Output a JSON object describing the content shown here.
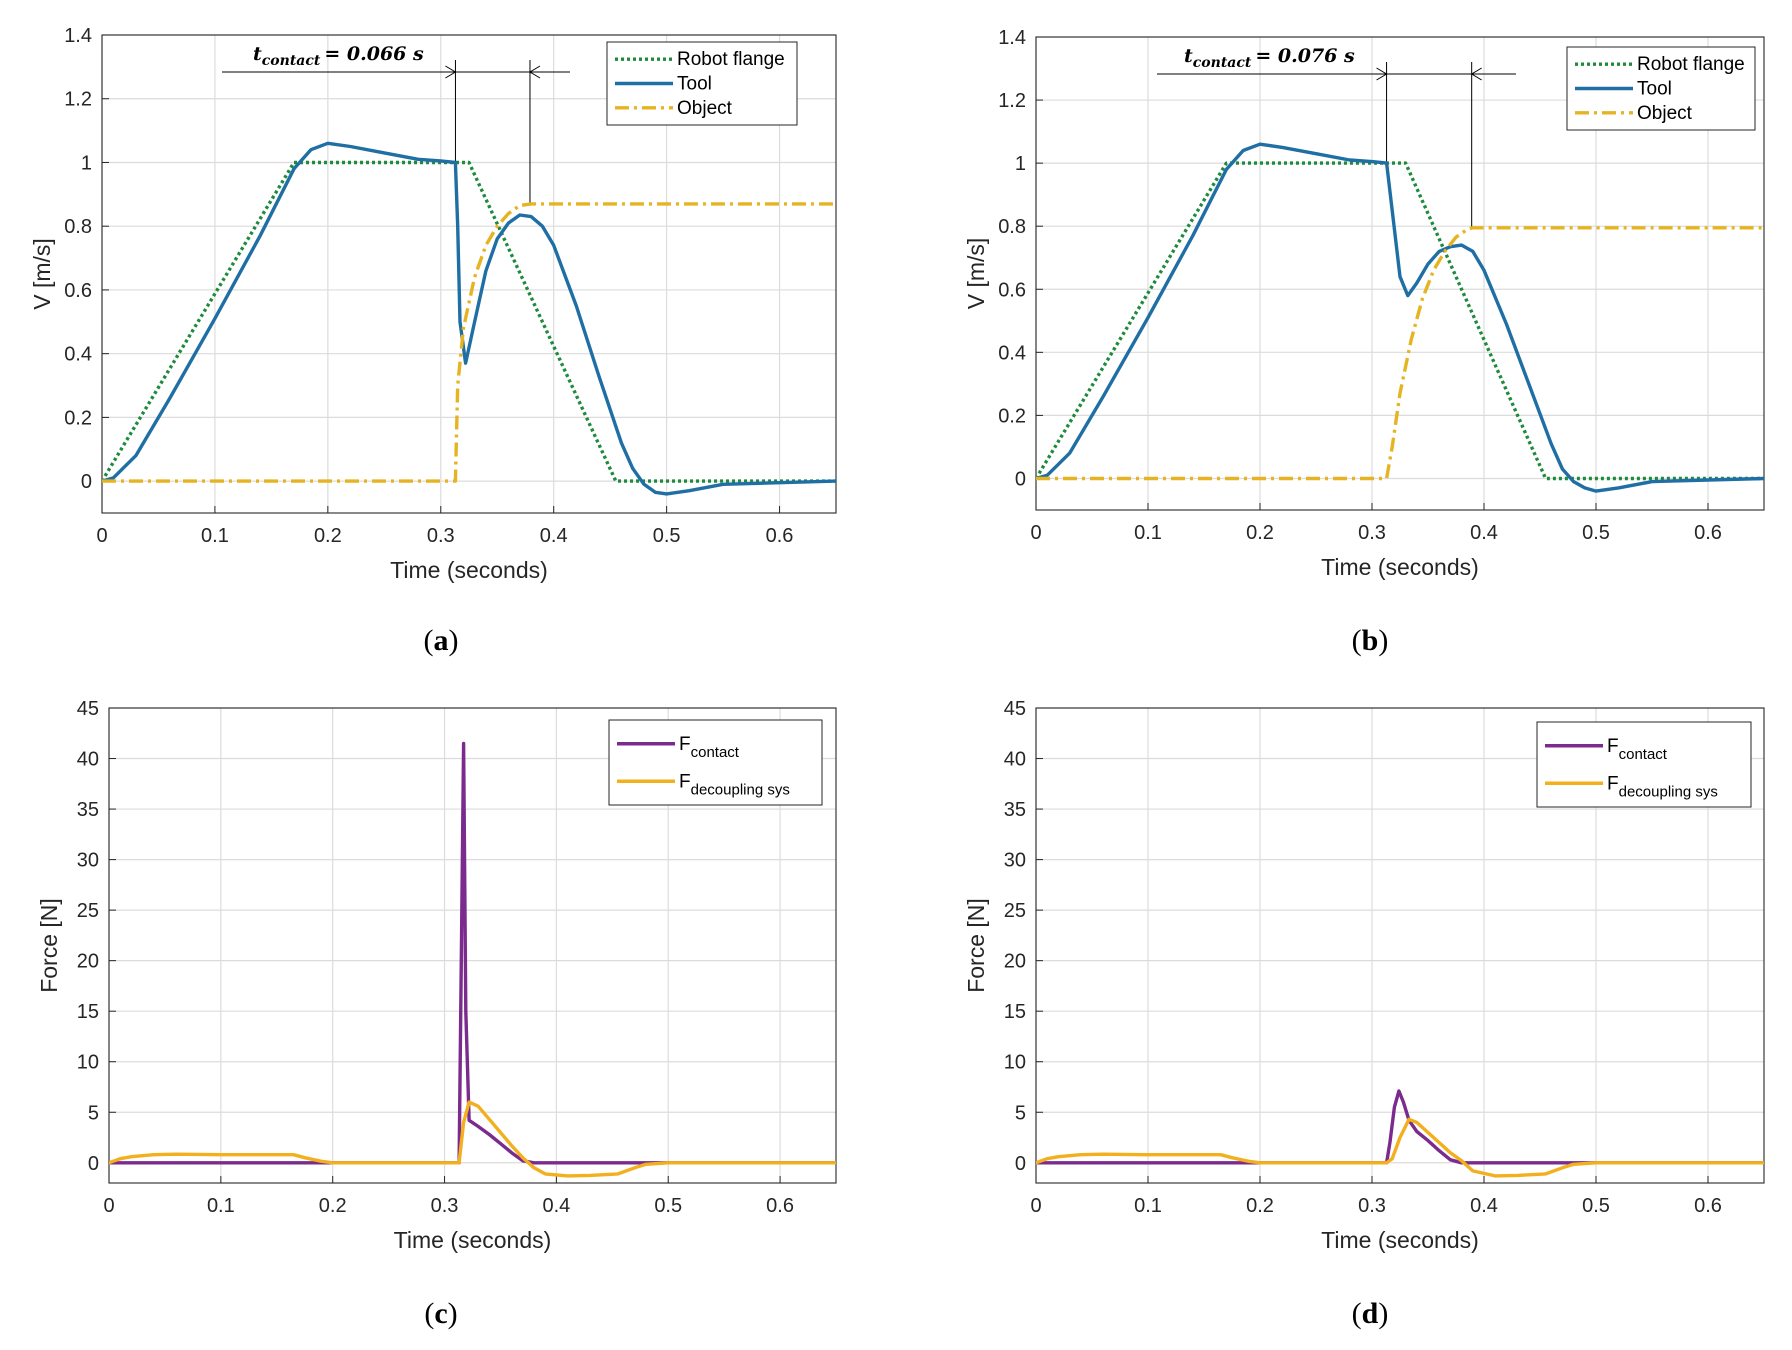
{
  "chart_data": [
    {
      "id": "a",
      "type": "line",
      "caption": "a",
      "xlabel": "Time (seconds)",
      "ylabel": "V [m/s]",
      "xlim": [
        0,
        0.65
      ],
      "ylim": [
        -0.1,
        1.4
      ],
      "xticks": [
        0,
        0.1,
        0.2,
        0.3,
        0.4,
        0.5,
        0.6
      ],
      "xtick_labels": [
        "0",
        "0.1",
        "0.2",
        "0.3",
        "0.4",
        "0.5",
        "0.6"
      ],
      "yticks": [
        0,
        0.2,
        0.4,
        0.6,
        0.8,
        1,
        1.2,
        1.4
      ],
      "ytick_labels": [
        "0",
        "0.2",
        "0.4",
        "0.6",
        "0.8",
        "1",
        "1.2",
        "1.4"
      ],
      "grid": true,
      "legend_position": "top-right",
      "annotation": {
        "symbol": "t",
        "subscript": "contact",
        "value": "= 0.066 s",
        "x_start": 0.313,
        "x_end": 0.379
      },
      "series": [
        {
          "name": "Robot flange",
          "color": "#1e8a3c",
          "style": "dotted",
          "x": [
            0,
            0.17,
            0.325,
            0.455,
            0.65
          ],
          "y": [
            0,
            1,
            1,
            0,
            0
          ]
        },
        {
          "name": "Tool",
          "color": "#1f6fa5",
          "style": "solid",
          "x": [
            0,
            0.01,
            0.03,
            0.06,
            0.1,
            0.14,
            0.17,
            0.185,
            0.2,
            0.22,
            0.25,
            0.28,
            0.3,
            0.313,
            0.315,
            0.317,
            0.322,
            0.33,
            0.34,
            0.35,
            0.36,
            0.37,
            0.38,
            0.39,
            0.4,
            0.42,
            0.44,
            0.46,
            0.47,
            0.48,
            0.49,
            0.5,
            0.52,
            0.55,
            0.6,
            0.65
          ],
          "y": [
            0,
            0.01,
            0.08,
            0.26,
            0.51,
            0.77,
            0.98,
            1.04,
            1.06,
            1.05,
            1.03,
            1.01,
            1.005,
            1.0,
            0.8,
            0.5,
            0.37,
            0.5,
            0.66,
            0.76,
            0.81,
            0.835,
            0.83,
            0.8,
            0.74,
            0.55,
            0.33,
            0.12,
            0.04,
            -0.01,
            -0.035,
            -0.04,
            -0.03,
            -0.01,
            -0.005,
            0
          ]
        },
        {
          "name": "Object",
          "color": "#e6b422",
          "style": "dashdot",
          "x": [
            0,
            0.313,
            0.315,
            0.32,
            0.33,
            0.34,
            0.35,
            0.36,
            0.37,
            0.38,
            0.65
          ],
          "y": [
            0,
            0,
            0.3,
            0.48,
            0.64,
            0.74,
            0.8,
            0.84,
            0.865,
            0.87,
            0.87
          ]
        }
      ]
    },
    {
      "id": "b",
      "type": "line",
      "caption": "b",
      "xlabel": "Time (seconds)",
      "ylabel": "V [m/s]",
      "xlim": [
        0,
        0.65
      ],
      "ylim": [
        -0.1,
        1.4
      ],
      "xticks": [
        0,
        0.1,
        0.2,
        0.3,
        0.4,
        0.5,
        0.6
      ],
      "xtick_labels": [
        "0",
        "0.1",
        "0.2",
        "0.3",
        "0.4",
        "0.5",
        "0.6"
      ],
      "yticks": [
        0,
        0.2,
        0.4,
        0.6,
        0.8,
        1,
        1.2,
        1.4
      ],
      "ytick_labels": [
        "0",
        "0.2",
        "0.4",
        "0.6",
        "0.8",
        "1",
        "1.2",
        "1.4"
      ],
      "grid": true,
      "legend_position": "top-right",
      "annotation": {
        "symbol": "t",
        "subscript": "contact",
        "value": "= 0.076 s",
        "x_start": 0.313,
        "x_end": 0.389
      },
      "series": [
        {
          "name": "Robot flange",
          "color": "#1e8a3c",
          "style": "dotted",
          "x": [
            0,
            0.17,
            0.33,
            0.455,
            0.65
          ],
          "y": [
            0,
            1,
            1,
            0,
            0
          ]
        },
        {
          "name": "Tool",
          "color": "#1f6fa5",
          "style": "solid",
          "x": [
            0,
            0.01,
            0.03,
            0.06,
            0.1,
            0.14,
            0.17,
            0.185,
            0.2,
            0.22,
            0.25,
            0.28,
            0.3,
            0.313,
            0.318,
            0.325,
            0.332,
            0.34,
            0.35,
            0.36,
            0.37,
            0.38,
            0.39,
            0.4,
            0.42,
            0.44,
            0.46,
            0.47,
            0.48,
            0.49,
            0.5,
            0.52,
            0.55,
            0.6,
            0.65
          ],
          "y": [
            0,
            0.01,
            0.08,
            0.26,
            0.51,
            0.77,
            0.98,
            1.04,
            1.06,
            1.05,
            1.03,
            1.01,
            1.005,
            1.0,
            0.85,
            0.64,
            0.58,
            0.62,
            0.68,
            0.72,
            0.735,
            0.74,
            0.72,
            0.66,
            0.49,
            0.3,
            0.11,
            0.03,
            -0.01,
            -0.03,
            -0.04,
            -0.03,
            -0.01,
            -0.005,
            0
          ]
        },
        {
          "name": "Object",
          "color": "#e6b422",
          "style": "dashdot",
          "x": [
            0,
            0.313,
            0.318,
            0.325,
            0.335,
            0.345,
            0.355,
            0.365,
            0.375,
            0.385,
            0.39,
            0.65
          ],
          "y": [
            0,
            0,
            0.1,
            0.27,
            0.44,
            0.57,
            0.66,
            0.72,
            0.765,
            0.79,
            0.795,
            0.795
          ]
        }
      ]
    },
    {
      "id": "c",
      "type": "line",
      "caption": "c",
      "xlabel": "Time (seconds)",
      "ylabel": "Force [N]",
      "xlim": [
        0,
        0.65
      ],
      "ylim": [
        -2,
        45
      ],
      "xticks": [
        0,
        0.1,
        0.2,
        0.3,
        0.4,
        0.5,
        0.6
      ],
      "xtick_labels": [
        "0",
        "0.1",
        "0.2",
        "0.3",
        "0.4",
        "0.5",
        "0.6"
      ],
      "yticks": [
        0,
        5,
        10,
        15,
        20,
        25,
        30,
        35,
        40,
        45
      ],
      "ytick_labels": [
        "0",
        "5",
        "10",
        "15",
        "20",
        "25",
        "30",
        "35",
        "40",
        "45"
      ],
      "grid": true,
      "legend_position": "top-right",
      "series": [
        {
          "name": "F",
          "subscript": "contact",
          "color": "#7b2a8e",
          "style": "solid",
          "x": [
            0,
            0.313,
            0.315,
            0.317,
            0.319,
            0.322,
            0.33,
            0.34,
            0.35,
            0.36,
            0.37,
            0.38,
            0.65
          ],
          "y": [
            0,
            0,
            20,
            41.5,
            15,
            4.2,
            3.6,
            2.8,
            1.9,
            1.0,
            0.2,
            0,
            0
          ]
        },
        {
          "name": "F",
          "subscript": "decoupling sys",
          "color": "#f2b01e",
          "style": "solid",
          "x": [
            0,
            0.01,
            0.02,
            0.04,
            0.06,
            0.1,
            0.14,
            0.165,
            0.175,
            0.19,
            0.2,
            0.313,
            0.317,
            0.322,
            0.33,
            0.34,
            0.35,
            0.36,
            0.37,
            0.38,
            0.39,
            0.41,
            0.43,
            0.455,
            0.47,
            0.48,
            0.5,
            0.65
          ],
          "y": [
            0,
            0.4,
            0.6,
            0.8,
            0.85,
            0.8,
            0.8,
            0.8,
            0.5,
            0.15,
            0,
            0,
            4,
            6,
            5.6,
            4.3,
            3.0,
            1.7,
            0.5,
            -0.5,
            -1.1,
            -1.3,
            -1.25,
            -1.1,
            -0.5,
            -0.15,
            0,
            0
          ]
        }
      ]
    },
    {
      "id": "d",
      "type": "line",
      "caption": "d",
      "xlabel": "Time (seconds)",
      "ylabel": "Force [N]",
      "xlim": [
        0,
        0.65
      ],
      "ylim": [
        -2,
        45
      ],
      "xticks": [
        0,
        0.1,
        0.2,
        0.3,
        0.4,
        0.5,
        0.6
      ],
      "xtick_labels": [
        "0",
        "0.1",
        "0.2",
        "0.3",
        "0.4",
        "0.5",
        "0.6"
      ],
      "yticks": [
        0,
        5,
        10,
        15,
        20,
        25,
        30,
        35,
        40,
        45
      ],
      "ytick_labels": [
        "0",
        "5",
        "10",
        "15",
        "20",
        "25",
        "30",
        "35",
        "40",
        "45"
      ],
      "grid": true,
      "legend_position": "top-right",
      "series": [
        {
          "name": "F",
          "subscript": "contact",
          "color": "#7b2a8e",
          "style": "solid",
          "x": [
            0,
            0.313,
            0.316,
            0.32,
            0.324,
            0.328,
            0.333,
            0.34,
            0.35,
            0.36,
            0.37,
            0.38,
            0.65
          ],
          "y": [
            0,
            0,
            2,
            5.5,
            7.1,
            6.0,
            4.2,
            3.1,
            2.2,
            1.2,
            0.3,
            0,
            0
          ]
        },
        {
          "name": "F",
          "subscript": "decoupling sys",
          "color": "#f2b01e",
          "style": "solid",
          "x": [
            0,
            0.01,
            0.02,
            0.04,
            0.06,
            0.1,
            0.14,
            0.165,
            0.175,
            0.19,
            0.2,
            0.313,
            0.318,
            0.325,
            0.333,
            0.34,
            0.35,
            0.36,
            0.37,
            0.38,
            0.39,
            0.41,
            0.43,
            0.455,
            0.47,
            0.48,
            0.5,
            0.65
          ],
          "y": [
            0,
            0.4,
            0.6,
            0.8,
            0.85,
            0.8,
            0.8,
            0.8,
            0.5,
            0.15,
            0,
            0,
            0.4,
            2.5,
            4.3,
            4.0,
            3.0,
            2.0,
            1.0,
            0.2,
            -0.8,
            -1.3,
            -1.25,
            -1.1,
            -0.5,
            -0.15,
            0,
            0
          ]
        }
      ]
    }
  ]
}
